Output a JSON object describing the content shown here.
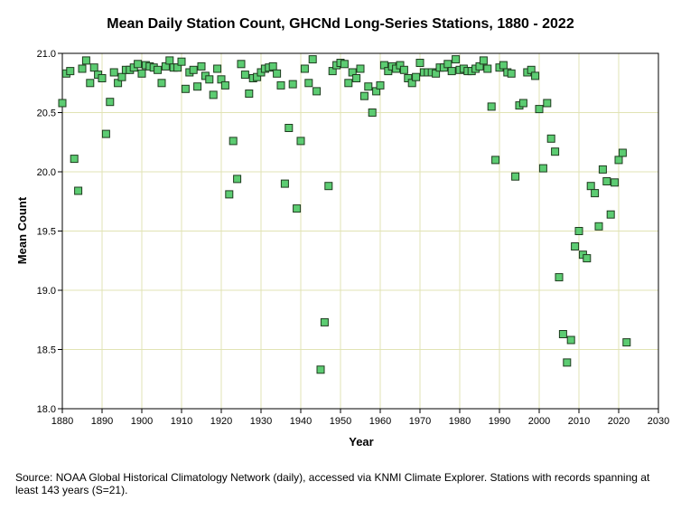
{
  "chart_data": {
    "type": "scatter",
    "title": "Mean Daily Station Count, GHCNd Long-Series Stations, 1880 - 2022",
    "xlabel": "Year",
    "ylabel": "Mean Count",
    "xlim": [
      1880,
      2030
    ],
    "ylim": [
      18.0,
      21.0
    ],
    "xticks": [
      "1880",
      "1890",
      "1900",
      "1910",
      "1920",
      "1930",
      "1940",
      "1950",
      "1960",
      "1970",
      "1980",
      "1990",
      "2000",
      "2010",
      "2020",
      "2030"
    ],
    "yticks": [
      "18.0",
      "18.5",
      "19.0",
      "19.5",
      "20.0",
      "20.5",
      "21.0"
    ],
    "grid": true,
    "marker": "square",
    "colors": {
      "marker_fill": "#5ccc72",
      "marker_edge": "#1f3b1f",
      "grid": "#e1e3b4",
      "axis": "#000000"
    },
    "x": [
      1880,
      1881,
      1882,
      1883,
      1884,
      1885,
      1886,
      1887,
      1888,
      1889,
      1890,
      1891,
      1892,
      1893,
      1894,
      1895,
      1896,
      1897,
      1898,
      1899,
      1900,
      1901,
      1902,
      1903,
      1904,
      1905,
      1906,
      1907,
      1908,
      1909,
      1910,
      1911,
      1912,
      1913,
      1914,
      1915,
      1916,
      1917,
      1918,
      1919,
      1920,
      1921,
      1922,
      1923,
      1924,
      1925,
      1926,
      1927,
      1928,
      1929,
      1930,
      1931,
      1932,
      1933,
      1934,
      1935,
      1936,
      1937,
      1938,
      1939,
      1940,
      1941,
      1942,
      1943,
      1944,
      1945,
      1946,
      1947,
      1948,
      1949,
      1950,
      1951,
      1952,
      1953,
      1954,
      1955,
      1956,
      1957,
      1958,
      1959,
      1960,
      1961,
      1962,
      1963,
      1964,
      1965,
      1966,
      1967,
      1968,
      1969,
      1970,
      1971,
      1972,
      1973,
      1974,
      1975,
      1976,
      1977,
      1978,
      1979,
      1980,
      1981,
      1982,
      1983,
      1984,
      1985,
      1986,
      1987,
      1988,
      1989,
      1990,
      1991,
      1992,
      1993,
      1994,
      1995,
      1996,
      1997,
      1998,
      1999,
      2000,
      2001,
      2002,
      2003,
      2004,
      2005,
      2006,
      2007,
      2008,
      2009,
      2010,
      2011,
      2012,
      2013,
      2014,
      2015,
      2016,
      2017,
      2018,
      2019,
      2020,
      2021,
      2022
    ],
    "y": [
      20.58,
      20.83,
      20.85,
      20.11,
      19.84,
      20.87,
      20.94,
      20.75,
      20.88,
      20.82,
      20.79,
      20.32,
      20.59,
      20.84,
      20.75,
      20.8,
      20.86,
      20.86,
      20.88,
      20.91,
      20.83,
      20.9,
      20.89,
      20.88,
      20.86,
      20.75,
      20.89,
      20.94,
      20.88,
      20.88,
      20.93,
      20.7,
      20.84,
      20.86,
      20.72,
      20.89,
      20.81,
      20.78,
      20.65,
      20.87,
      20.78,
      20.73,
      19.81,
      20.26,
      19.94,
      20.91,
      20.82,
      20.66,
      20.79,
      20.8,
      20.84,
      20.87,
      20.88,
      20.89,
      20.83,
      20.73,
      19.9,
      20.37,
      20.74,
      19.69,
      20.26,
      20.87,
      20.75,
      20.95,
      20.68,
      18.33,
      18.73,
      19.88,
      20.85,
      20.9,
      20.92,
      20.91,
      20.75,
      20.84,
      20.79,
      20.87,
      20.64,
      20.72,
      20.5,
      20.68,
      20.73,
      20.9,
      20.85,
      20.89,
      20.87,
      20.9,
      20.86,
      20.79,
      20.75,
      20.8,
      20.92,
      20.84,
      20.84,
      20.84,
      20.83,
      20.88,
      20.88,
      20.91,
      20.85,
      20.95,
      20.86,
      20.87,
      20.85,
      20.85,
      20.87,
      20.89,
      20.94,
      20.87,
      20.55,
      20.1,
      20.88,
      20.9,
      20.84,
      20.83,
      19.96,
      20.56,
      20.58,
      20.84,
      20.86,
      20.81,
      20.53,
      20.03,
      20.58,
      20.28,
      20.17,
      19.11,
      18.63,
      18.39,
      18.58,
      19.37,
      19.5,
      19.3,
      19.27,
      19.88,
      19.82,
      19.54,
      20.02,
      19.92,
      19.64,
      19.91,
      20.1,
      20.16,
      18.56
    ]
  },
  "footnote": "Source: NOAA Global Historical Climatology Network (daily), accessed via KNMI Climate Explorer. Stations with records spanning at least 143 years (S=21)."
}
